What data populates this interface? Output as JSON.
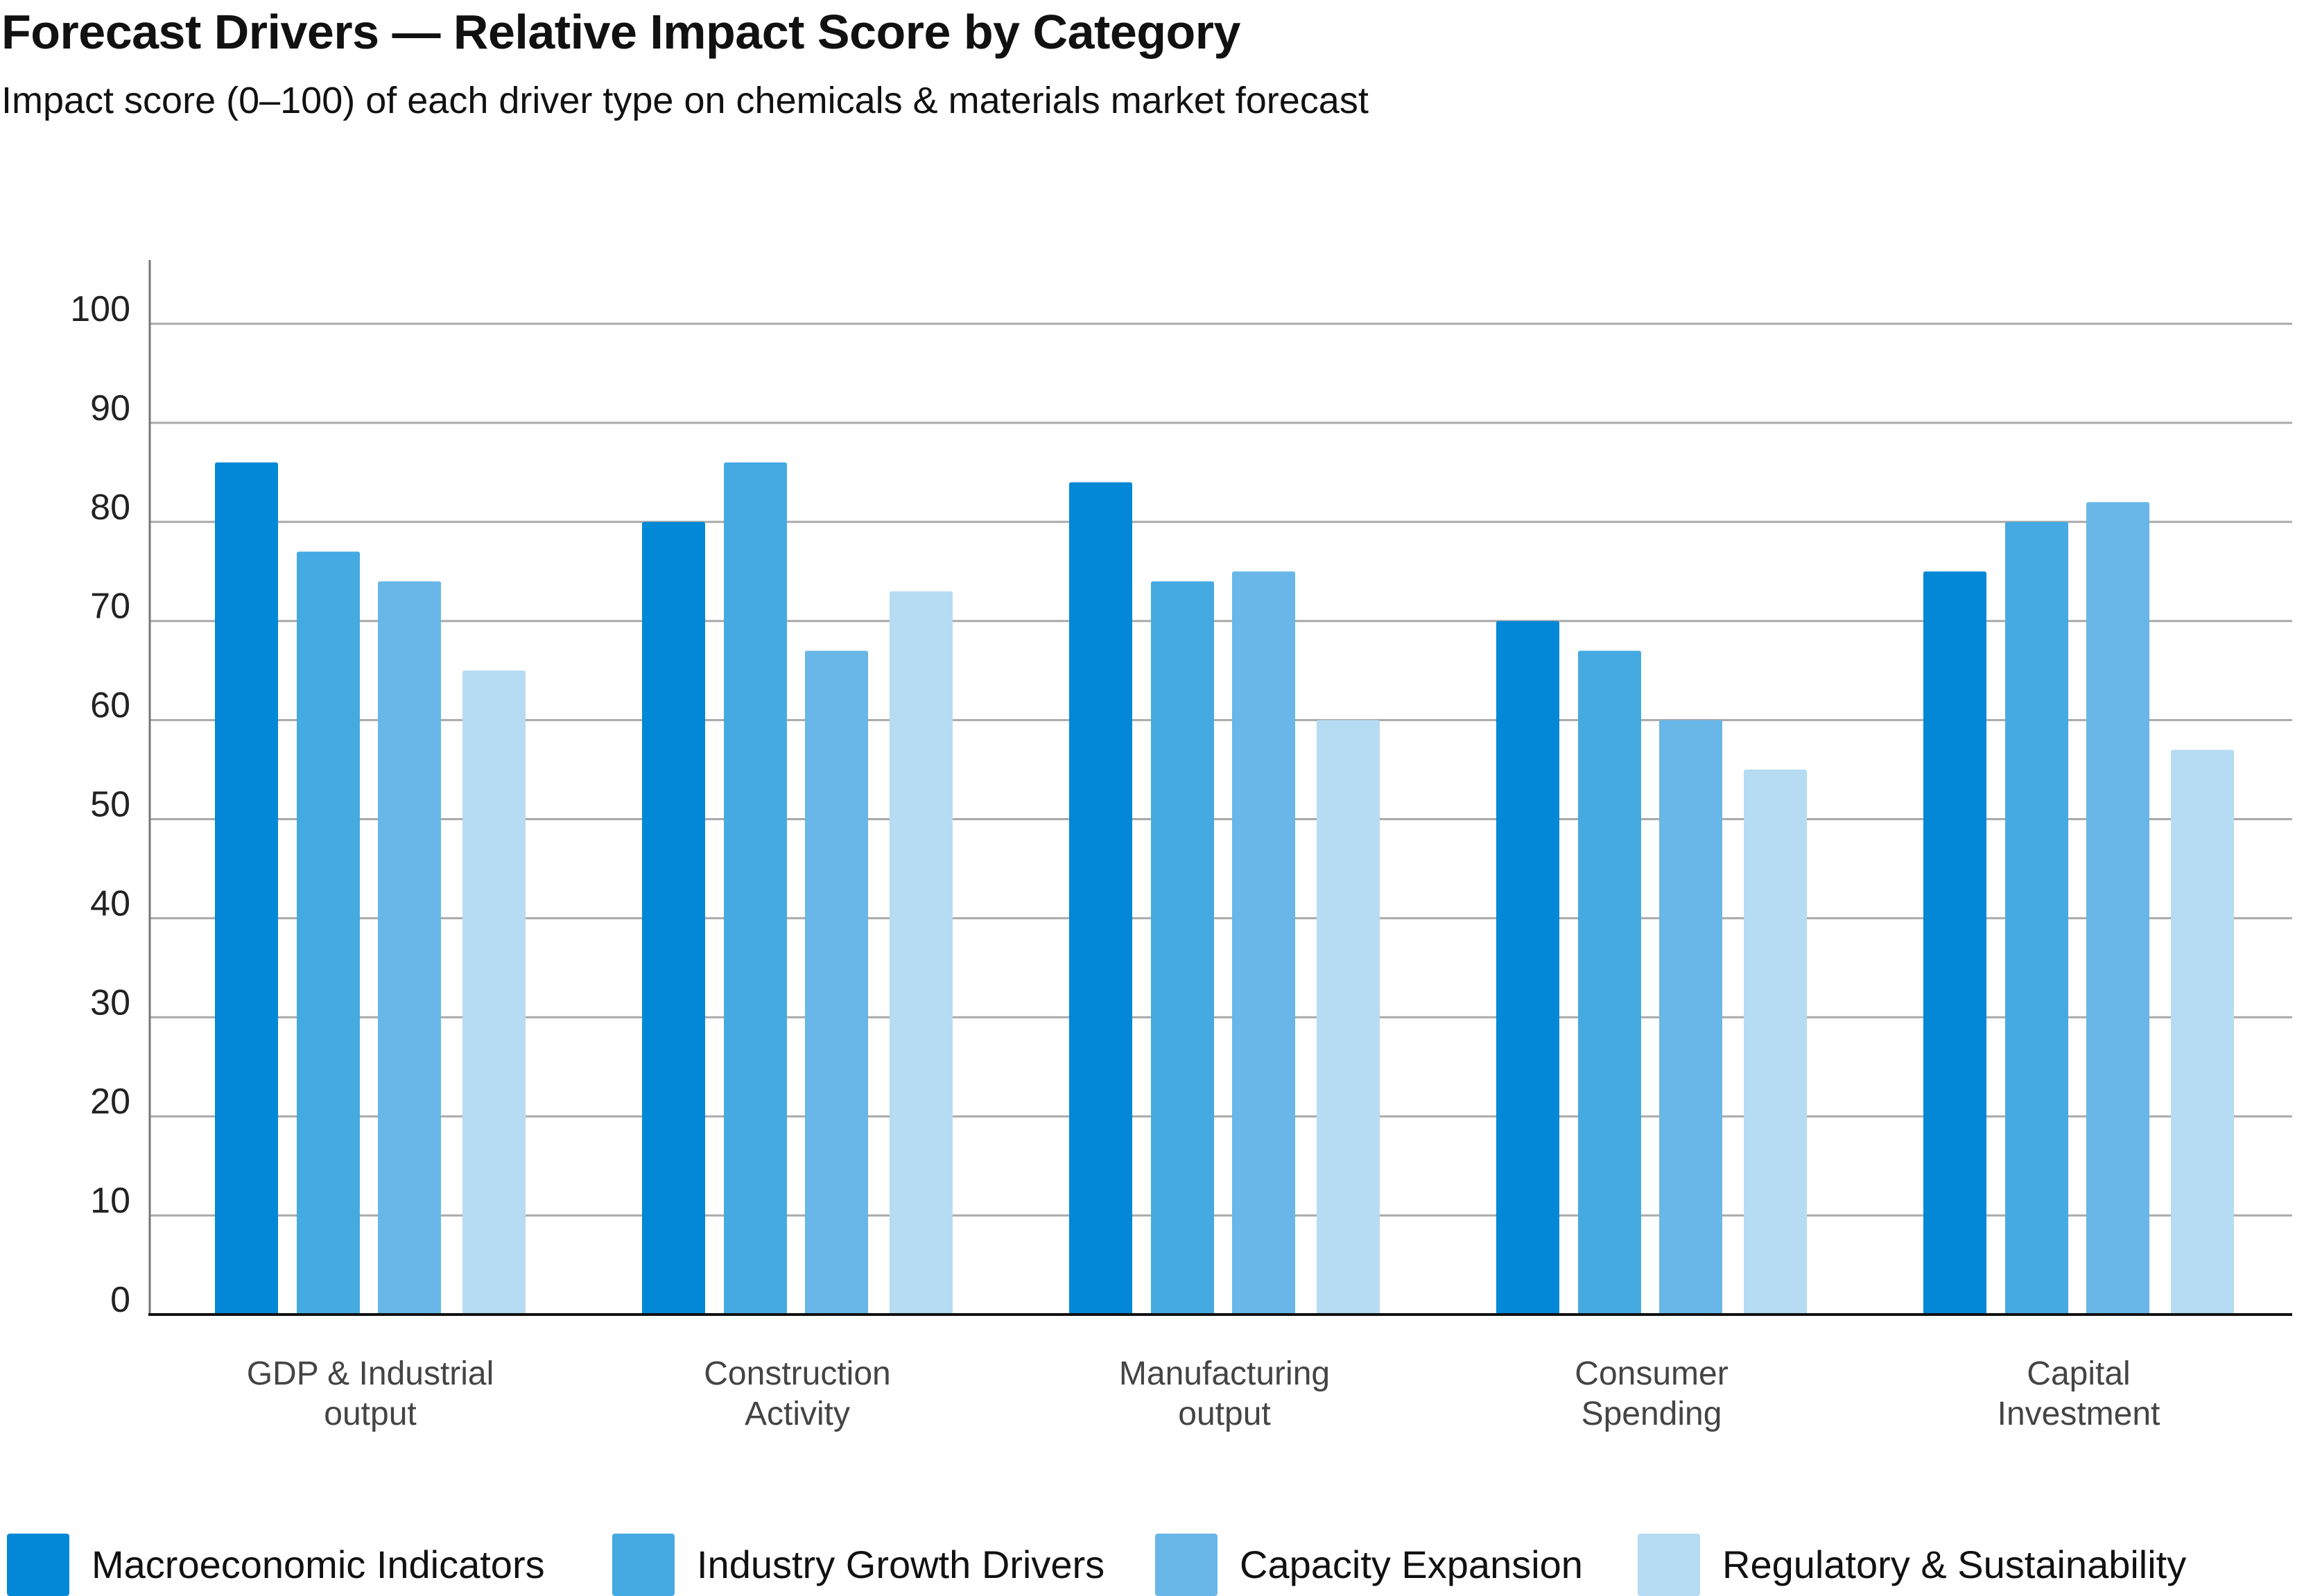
{
  "title": "Forecast Drivers — Relative Impact Score by Category",
  "subtitle": "Impact score (0–100) of each driver type on chemicals & materials market forecast",
  "chart_data": {
    "type": "bar",
    "title": "Forecast Drivers — Relative Impact Score by Category",
    "subtitle": "Impact score (0–100) of each driver type on chemicals & materials market forecast",
    "categories": [
      [
        "GDP & Industrial",
        "output"
      ],
      [
        "Construction",
        "Activity"
      ],
      [
        "Manufacturing",
        "output"
      ],
      [
        "Consumer",
        "Spending"
      ],
      [
        "Capital",
        "Investment"
      ]
    ],
    "series": [
      {
        "name": "Macroeconomic Indicators",
        "color": "#0288d6",
        "values": [
          86,
          80,
          84,
          70,
          75
        ]
      },
      {
        "name": "Industry Growth Drivers",
        "color": "#45aae2",
        "values": [
          77,
          86,
          74,
          67,
          80
        ]
      },
      {
        "name": "Capacity Expansion",
        "color": "#68b7e8",
        "values": [
          74,
          67,
          75,
          60,
          82
        ]
      },
      {
        "name": "Regulatory & Sustainability",
        "color": "#b5dcf2",
        "values": [
          65,
          73,
          60,
          55,
          57
        ]
      }
    ],
    "xlabel": "",
    "ylabel": "",
    "ylim": [
      0,
      100
    ],
    "yticks": [
      0,
      10,
      20,
      30,
      40,
      50,
      60,
      70,
      80,
      90,
      100
    ],
    "grid": true,
    "legend_position": "bottom"
  }
}
